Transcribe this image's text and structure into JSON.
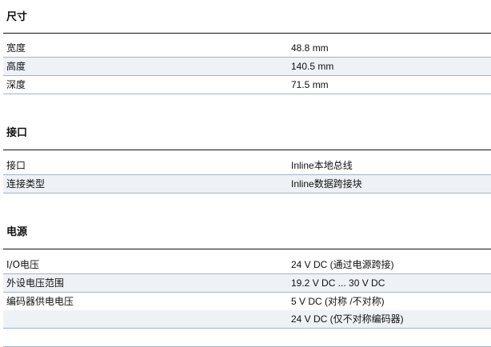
{
  "sections": [
    {
      "title": "尺寸",
      "rows": [
        {
          "label": "宽度",
          "value": "48.8 mm"
        },
        {
          "label": "高度",
          "value": "140.5 mm"
        },
        {
          "label": "深度",
          "value": "71.5 mm"
        }
      ]
    },
    {
      "title": "接口",
      "rows": [
        {
          "label": "接口",
          "value": "Inline本地总线"
        },
        {
          "label": "连接类型",
          "value": "Inline数据跨接块"
        }
      ]
    },
    {
      "title": "电源",
      "rows": [
        {
          "label": "I/O电压",
          "value": "24 V DC (通过电源跨接)"
        },
        {
          "label": "外设电压范围",
          "value": "19.2 V DC ... 30 V DC"
        },
        {
          "label": "编码器供电电压",
          "value": "5 V DC (对称 /不对称)"
        },
        {
          "label": "",
          "value": "24 V DC (仅不对称编码器)"
        }
      ]
    }
  ]
}
